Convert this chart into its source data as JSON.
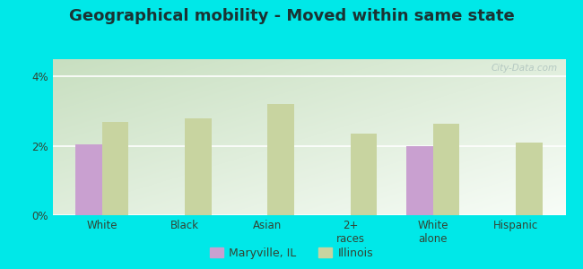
{
  "title": "Geographical mobility - Moved within same state",
  "categories": [
    "White",
    "Black",
    "Asian",
    "2+\nraces",
    "White\nalone",
    "Hispanic"
  ],
  "maryville_values": [
    2.05,
    0,
    0,
    0,
    2.0,
    0
  ],
  "illinois_values": [
    2.7,
    2.8,
    3.2,
    2.35,
    2.65,
    2.1
  ],
  "maryville_color": "#c9a0d0",
  "illinois_color": "#c8d4a0",
  "bar_width": 0.32,
  "ylim": [
    0,
    4.5
  ],
  "yticks": [
    0,
    2,
    4
  ],
  "ytick_labels": [
    "0%",
    "2%",
    "4%"
  ],
  "background_color": "#00e8e8",
  "plot_bg_left_top": "#c8dfc0",
  "plot_bg_right_bottom": "#f8fdf8",
  "title_fontsize": 13,
  "legend_labels": [
    "Maryville, IL",
    "Illinois"
  ],
  "watermark": "City-Data.com"
}
